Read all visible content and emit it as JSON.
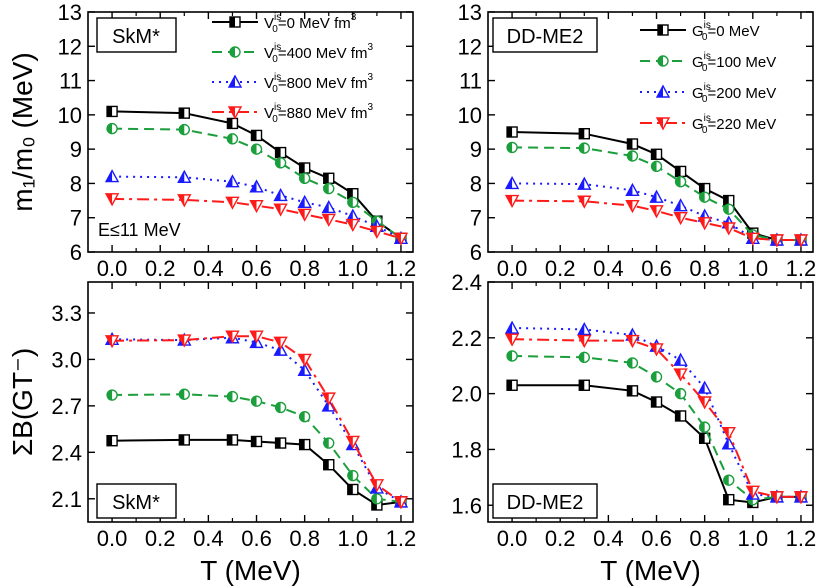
{
  "chart_data": [
    {
      "type": "line",
      "panel": "top-left",
      "label": "SkM*",
      "annotation": "E≤11 MeV",
      "ylabel": "m₁/m₀ (MeV)",
      "xlabel": "",
      "xlim": [
        -0.1,
        1.25
      ],
      "ylim": [
        6,
        13
      ],
      "xticks": [
        "0.0",
        "0.2",
        "0.4",
        "0.6",
        "0.8",
        "1.0",
        "1.2"
      ],
      "yticks": [
        "6",
        "7",
        "8",
        "9",
        "10",
        "11",
        "12",
        "13"
      ],
      "x": [
        0.0,
        0.3,
        0.5,
        0.6,
        0.7,
        0.8,
        0.9,
        1.0,
        1.1,
        1.2
      ],
      "series": [
        {
          "name": "V0is=0 MeV fm3",
          "color": "#000000",
          "dash": "solid",
          "marker": "square",
          "values": [
            10.1,
            10.05,
            9.75,
            9.4,
            8.9,
            8.45,
            8.15,
            7.7,
            6.9,
            6.4
          ]
        },
        {
          "name": "V0is=400 MeV fm3",
          "color": "#1b9e3c",
          "dash": "dashed",
          "marker": "circle",
          "values": [
            9.6,
            9.57,
            9.3,
            9.0,
            8.6,
            8.15,
            7.85,
            7.45,
            6.9,
            6.4
          ]
        },
        {
          "name": "V0is=800 MeV fm3",
          "color": "#1a1aff",
          "dash": "dotted",
          "marker": "triangle-up",
          "values": [
            8.2,
            8.18,
            8.05,
            7.9,
            7.65,
            7.45,
            7.3,
            7.05,
            6.75,
            6.4
          ]
        },
        {
          "name": "V0is=880 MeV fm3",
          "color": "#ff1a1a",
          "dash": "dashdot",
          "marker": "triangle-down",
          "values": [
            7.55,
            7.52,
            7.45,
            7.35,
            7.25,
            7.1,
            6.95,
            6.8,
            6.6,
            6.4
          ]
        }
      ],
      "legend": [
        {
          "main": "V",
          "sub": "0",
          "sup": "is",
          "rest": "=0 MeV fm",
          "sup2": "3"
        },
        {
          "main": "V",
          "sub": "0",
          "sup": "is",
          "rest": "=400 MeV fm",
          "sup2": "3"
        },
        {
          "main": "V",
          "sub": "0",
          "sup": "is",
          "rest": "=800 MeV fm",
          "sup2": "3"
        },
        {
          "main": "V",
          "sub": "0",
          "sup": "is",
          "rest": "=880 MeV fm",
          "sup2": "3"
        }
      ]
    },
    {
      "type": "line",
      "panel": "top-right",
      "label": "DD-ME2",
      "ylabel": "",
      "xlabel": "",
      "xlim": [
        -0.1,
        1.25
      ],
      "ylim": [
        6,
        13
      ],
      "xticks": [
        "0.0",
        "0.2",
        "0.4",
        "0.6",
        "0.8",
        "1.0",
        "1.2"
      ],
      "yticks": [
        "6",
        "7",
        "8",
        "9",
        "10",
        "11",
        "12",
        "13"
      ],
      "x": [
        0.0,
        0.3,
        0.5,
        0.6,
        0.7,
        0.8,
        0.9,
        1.0,
        1.1,
        1.2
      ],
      "series": [
        {
          "name": "G0is=0 MeV",
          "color": "#000000",
          "dash": "solid",
          "marker": "square",
          "values": [
            9.5,
            9.45,
            9.15,
            8.85,
            8.35,
            7.85,
            7.5,
            6.55,
            6.35,
            6.35
          ]
        },
        {
          "name": "G0is=100 MeV",
          "color": "#1b9e3c",
          "dash": "dashed",
          "marker": "circle",
          "values": [
            9.05,
            9.03,
            8.8,
            8.5,
            8.05,
            7.6,
            7.25,
            6.5,
            6.35,
            6.35
          ]
        },
        {
          "name": "G0is=200 MeV",
          "color": "#1a1aff",
          "dash": "dotted",
          "marker": "triangle-up",
          "values": [
            8.0,
            7.98,
            7.8,
            7.6,
            7.35,
            7.05,
            6.85,
            6.4,
            6.35,
            6.35
          ]
        },
        {
          "name": "G0is=220 MeV",
          "color": "#ff1a1a",
          "dash": "dashdot",
          "marker": "triangle-down",
          "values": [
            7.5,
            7.48,
            7.35,
            7.2,
            7.0,
            6.85,
            6.7,
            6.4,
            6.35,
            6.35
          ]
        }
      ],
      "legend": [
        {
          "main": "G",
          "sub": "0",
          "sup": "is",
          "rest": "=0 MeV",
          "sup2": ""
        },
        {
          "main": "G",
          "sub": "0",
          "sup": "is",
          "rest": "=100 MeV",
          "sup2": ""
        },
        {
          "main": "G",
          "sub": "0",
          "sup": "is",
          "rest": "=200 MeV",
          "sup2": ""
        },
        {
          "main": "G",
          "sub": "0",
          "sup": "is",
          "rest": "=220 MeV",
          "sup2": ""
        }
      ]
    },
    {
      "type": "line",
      "panel": "bottom-left",
      "label": "SkM*",
      "ylabel": "ΣB(GT⁻)",
      "xlabel": "T (MeV)",
      "xlim": [
        -0.1,
        1.25
      ],
      "ylim": [
        1.95,
        3.5
      ],
      "xticks": [
        "0.0",
        "0.2",
        "0.4",
        "0.6",
        "0.8",
        "1.0",
        "1.2"
      ],
      "yticks": [
        "2.1",
        "2.4",
        "2.7",
        "3.0",
        "3.3"
      ],
      "x": [
        0.0,
        0.3,
        0.5,
        0.6,
        0.7,
        0.8,
        0.9,
        1.0,
        1.1,
        1.2
      ],
      "series": [
        {
          "name": "V0is=0 MeV fm3",
          "color": "#000000",
          "dash": "solid",
          "marker": "square",
          "values": [
            2.475,
            2.48,
            2.48,
            2.47,
            2.46,
            2.45,
            2.32,
            2.16,
            2.06,
            2.08
          ]
        },
        {
          "name": "V0is=400 MeV fm3",
          "color": "#1b9e3c",
          "dash": "dashed",
          "marker": "circle",
          "values": [
            2.77,
            2.775,
            2.76,
            2.73,
            2.69,
            2.63,
            2.46,
            2.25,
            2.1,
            2.08
          ]
        },
        {
          "name": "V0is=800 MeV fm3",
          "color": "#1a1aff",
          "dash": "dotted",
          "marker": "triangle-up",
          "values": [
            3.13,
            3.125,
            3.14,
            3.11,
            3.06,
            2.93,
            2.7,
            2.45,
            2.17,
            2.08
          ]
        },
        {
          "name": "V0is=880 MeV fm3",
          "color": "#ff1a1a",
          "dash": "dashdot",
          "marker": "triangle-down",
          "values": [
            3.12,
            3.125,
            3.15,
            3.15,
            3.11,
            3.0,
            2.75,
            2.47,
            2.19,
            2.08
          ]
        }
      ]
    },
    {
      "type": "line",
      "panel": "bottom-right",
      "label": "DD-ME2",
      "ylabel": "",
      "xlabel": "T (MeV)",
      "xlim": [
        -0.1,
        1.25
      ],
      "ylim": [
        1.54,
        2.4
      ],
      "xticks": [
        "0.0",
        "0.2",
        "0.4",
        "0.6",
        "0.8",
        "1.0",
        "1.2"
      ],
      "yticks": [
        "1.6",
        "1.8",
        "2.0",
        "2.2",
        "2.4"
      ],
      "x": [
        0.0,
        0.3,
        0.5,
        0.6,
        0.7,
        0.8,
        0.9,
        1.0,
        1.1,
        1.2
      ],
      "series": [
        {
          "name": "G0is=0 MeV",
          "color": "#000000",
          "dash": "solid",
          "marker": "square",
          "values": [
            2.03,
            2.03,
            2.01,
            1.97,
            1.92,
            1.84,
            1.62,
            1.61,
            1.63,
            1.63
          ]
        },
        {
          "name": "G0is=100 MeV",
          "color": "#1b9e3c",
          "dash": "dashed",
          "marker": "circle",
          "values": [
            2.135,
            2.13,
            2.11,
            2.06,
            2.0,
            1.88,
            1.69,
            1.62,
            1.63,
            1.63
          ]
        },
        {
          "name": "G0is=200 MeV",
          "color": "#1a1aff",
          "dash": "dotted",
          "marker": "triangle-up",
          "values": [
            2.235,
            2.23,
            2.21,
            2.17,
            2.12,
            2.02,
            1.82,
            1.64,
            1.63,
            1.63
          ]
        },
        {
          "name": "G0is=220 MeV",
          "color": "#ff1a1a",
          "dash": "dashdot",
          "marker": "triangle-down",
          "values": [
            2.195,
            2.19,
            2.19,
            2.16,
            2.07,
            1.97,
            1.86,
            1.65,
            1.63,
            1.63
          ]
        }
      ]
    }
  ]
}
